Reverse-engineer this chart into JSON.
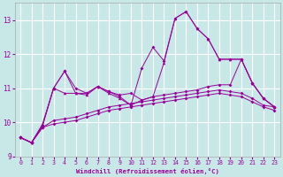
{
  "background_color": "#c8e8e8",
  "grid_color": "#ffffff",
  "line_color": "#990099",
  "xlabel": "Windchill (Refroidissement éolien,°C)",
  "ylim": [
    9,
    13.5
  ],
  "xlim": [
    -0.5,
    23.5
  ],
  "yticks": [
    9,
    10,
    11,
    12,
    13
  ],
  "xticks": [
    0,
    1,
    2,
    3,
    4,
    5,
    6,
    7,
    8,
    9,
    10,
    11,
    12,
    13,
    14,
    15,
    16,
    17,
    18,
    19,
    20,
    21,
    22,
    23
  ],
  "line1_x": [
    0,
    1,
    2,
    3,
    4,
    5,
    6,
    7,
    8,
    9,
    10,
    11,
    12,
    13,
    14,
    15,
    16,
    17,
    18,
    19,
    20,
    21,
    22,
    23
  ],
  "line1_y": [
    9.55,
    9.4,
    9.9,
    11.0,
    11.5,
    11.0,
    10.85,
    11.05,
    10.9,
    10.8,
    10.85,
    10.65,
    10.75,
    10.8,
    10.85,
    10.9,
    10.95,
    11.05,
    11.1,
    11.1,
    11.85,
    11.15,
    10.7,
    10.45
  ],
  "line1_marker": "D",
  "line2_x": [
    0,
    1,
    2,
    3,
    4,
    5,
    6,
    7,
    8,
    9,
    10,
    11,
    12,
    13,
    14,
    15,
    16,
    17,
    18,
    19,
    20,
    21,
    22,
    23
  ],
  "line2_y": [
    9.55,
    9.4,
    9.9,
    11.0,
    11.5,
    10.85,
    10.85,
    11.05,
    10.9,
    10.75,
    10.5,
    11.6,
    12.2,
    11.8,
    13.05,
    13.25,
    12.75,
    12.45,
    11.85,
    11.85,
    11.85,
    11.15,
    10.7,
    10.45
  ],
  "line2_marker": "D",
  "line3_x": [
    0,
    1,
    2,
    3,
    4,
    5,
    6,
    7,
    8,
    9,
    10,
    11,
    12,
    13,
    14,
    15,
    16,
    17,
    18,
    19,
    20,
    21,
    22,
    23
  ],
  "line3_y": [
    9.55,
    9.4,
    9.95,
    11.0,
    10.85,
    10.85,
    10.8,
    11.05,
    10.85,
    10.7,
    10.5,
    10.65,
    10.75,
    11.75,
    13.05,
    13.25,
    12.75,
    12.45,
    11.85,
    11.85,
    11.85,
    11.15,
    10.7,
    10.45
  ],
  "line3_marker": "^",
  "line4_x": [
    0,
    1,
    2,
    3,
    4,
    5,
    6,
    7,
    8,
    9,
    10,
    11,
    12,
    13,
    14,
    15,
    16,
    17,
    18,
    19,
    20,
    21,
    22,
    23
  ],
  "line4_y": [
    9.55,
    9.4,
    9.85,
    10.05,
    10.1,
    10.15,
    10.25,
    10.35,
    10.45,
    10.5,
    10.55,
    10.6,
    10.65,
    10.7,
    10.75,
    10.8,
    10.85,
    10.9,
    10.95,
    10.9,
    10.85,
    10.7,
    10.5,
    10.45
  ],
  "line4_marker": "D",
  "line5_x": [
    0,
    1,
    2,
    3,
    4,
    5,
    6,
    7,
    8,
    9,
    10,
    11,
    12,
    13,
    14,
    15,
    16,
    17,
    18,
    19,
    20,
    21,
    22,
    23
  ],
  "line5_y": [
    9.55,
    9.4,
    9.85,
    9.95,
    10.0,
    10.05,
    10.15,
    10.25,
    10.35,
    10.4,
    10.45,
    10.5,
    10.55,
    10.6,
    10.65,
    10.7,
    10.75,
    10.8,
    10.85,
    10.8,
    10.75,
    10.6,
    10.45,
    10.35
  ],
  "line5_marker": "D"
}
